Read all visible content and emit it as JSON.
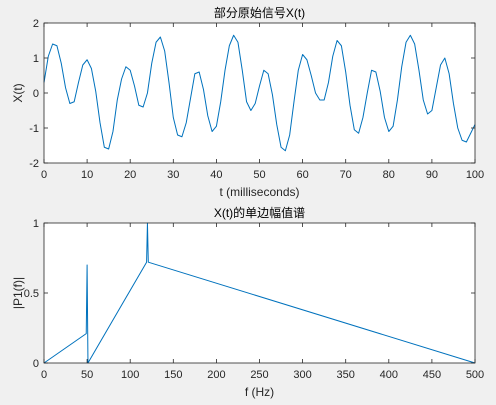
{
  "colors": {
    "figure_bg": "#f0f0f0",
    "axes_bg": "#ffffff",
    "axis_line": "#262626",
    "series": "#0072bd"
  },
  "chart_data": [
    {
      "type": "line",
      "title": "部分原始信号X(t)",
      "xlabel": "t (milliseconds)",
      "ylabel": "X(t)",
      "xlim": [
        0,
        100
      ],
      "ylim": [
        -2,
        2
      ],
      "xticks": [
        0,
        10,
        20,
        30,
        40,
        50,
        60,
        70,
        80,
        90,
        100
      ],
      "yticks": [
        -2,
        -1,
        0,
        1,
        2
      ],
      "grid": false,
      "legend": "none",
      "series": [
        {
          "x": [
            0,
            1,
            2,
            3,
            4,
            5,
            6,
            7,
            8,
            9,
            10,
            11,
            12,
            13,
            14,
            15,
            16,
            17,
            18,
            19,
            20,
            21,
            22,
            23,
            24,
            25,
            26,
            27,
            28,
            29,
            30,
            31,
            32,
            33,
            34,
            35,
            36,
            37,
            38,
            39,
            40,
            41,
            42,
            43,
            44,
            45,
            46,
            47,
            48,
            49,
            50,
            51,
            52,
            53,
            54,
            55,
            56,
            57,
            58,
            59,
            60,
            61,
            62,
            63,
            64,
            65,
            66,
            67,
            68,
            69,
            70,
            71,
            72,
            73,
            74,
            75,
            76,
            77,
            78,
            79,
            80,
            81,
            82,
            83,
            84,
            85,
            86,
            87,
            88,
            89,
            90,
            91,
            92,
            93,
            94,
            95,
            96,
            97,
            98,
            99,
            100
          ],
          "y": [
            0.3,
            1.05,
            1.4,
            1.35,
            0.85,
            0.15,
            -0.3,
            -0.25,
            0.3,
            0.8,
            0.95,
            0.7,
            0.05,
            -0.85,
            -1.55,
            -1.6,
            -1.1,
            -0.2,
            0.4,
            0.75,
            0.65,
            0.2,
            -0.35,
            -0.4,
            0.0,
            0.85,
            1.45,
            1.6,
            1.2,
            0.3,
            -0.7,
            -1.2,
            -1.25,
            -0.85,
            -0.15,
            0.55,
            0.6,
            0.1,
            -0.65,
            -1.1,
            -0.95,
            -0.25,
            0.65,
            1.35,
            1.65,
            1.45,
            0.65,
            -0.25,
            -0.5,
            -0.3,
            0.2,
            0.65,
            0.55,
            -0.05,
            -0.9,
            -1.55,
            -1.65,
            -1.2,
            -0.25,
            0.65,
            1.1,
            0.95,
            0.5,
            0.0,
            -0.2,
            -0.2,
            0.3,
            1.05,
            1.5,
            1.35,
            0.6,
            -0.35,
            -1.05,
            -1.15,
            -0.7,
            0.0,
            0.65,
            0.6,
            0.05,
            -0.7,
            -1.1,
            -0.95,
            -0.2,
            0.75,
            1.45,
            1.65,
            1.4,
            0.65,
            -0.2,
            -0.6,
            -0.5,
            0.15,
            0.8,
            1.0,
            0.55,
            -0.3,
            -1.0,
            -1.35,
            -1.4,
            -1.15,
            -0.9
          ]
        }
      ]
    },
    {
      "type": "line",
      "title": "X(t)的单边幅值谱",
      "xlabel": "f (Hz)",
      "ylabel": "|P1(f)|",
      "xlim": [
        0,
        500
      ],
      "ylim": [
        0,
        1
      ],
      "xticks": [
        0,
        50,
        100,
        150,
        200,
        250,
        300,
        350,
        400,
        450,
        500
      ],
      "yticks": [
        0,
        0.5,
        1
      ],
      "ytick_labels": [
        "0",
        "0.5",
        "1"
      ],
      "grid": false,
      "legend": "none",
      "series": [
        {
          "x": [
            0,
            49,
            50,
            51,
            119,
            120,
            121,
            500
          ],
          "y": [
            0,
            0.21,
            0.7,
            0,
            0.72,
            1.0,
            0.72,
            0
          ]
        }
      ]
    }
  ]
}
